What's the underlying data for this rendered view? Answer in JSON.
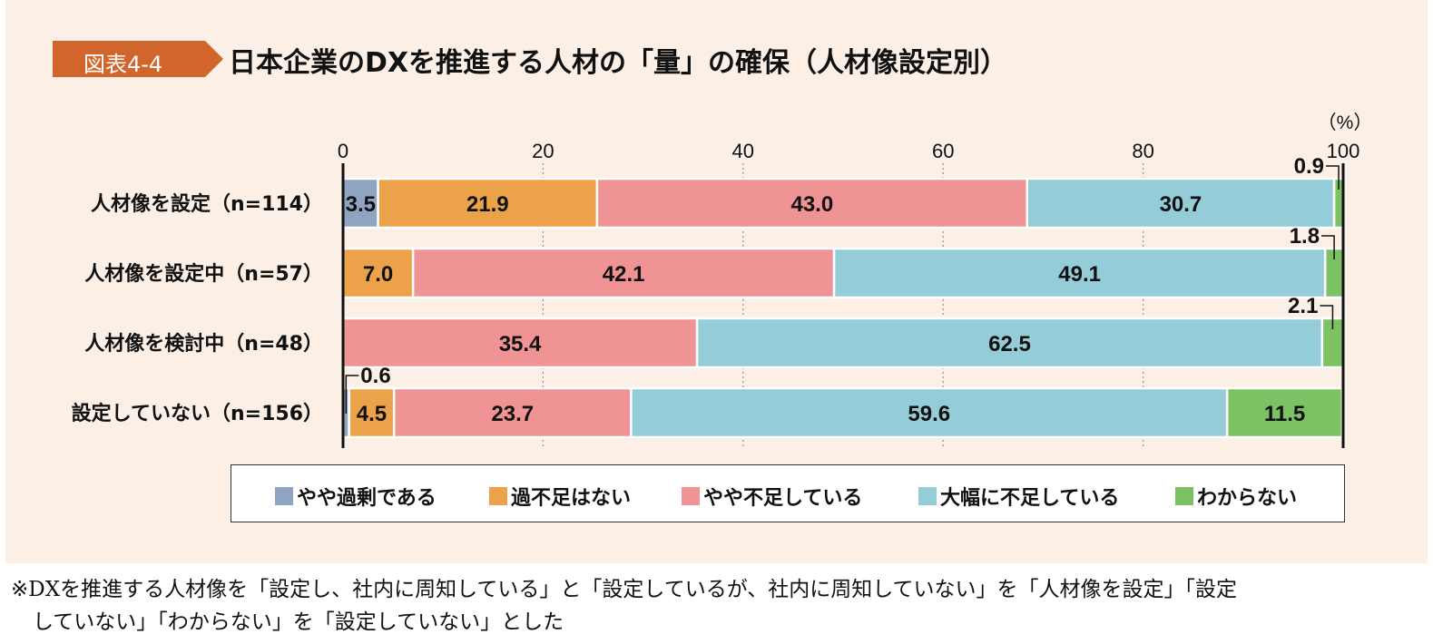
{
  "figure_tag": "図表4-4",
  "colors": {
    "panel_bg": "#fbefe6",
    "tag_bg": "#d2652b",
    "slightly_excess": "#8ea4c0",
    "no_gap": "#eca248",
    "slightly_short": "#f09394",
    "severely_short": "#94ccd8",
    "unknown": "#7cc163"
  },
  "chart_data": {
    "type": "bar",
    "orientation": "horizontal-stacked",
    "title": "日本企業のDXを推進する人材の「量」の確保（人材像設定別）",
    "unit_label": "（%）",
    "xlim": [
      0,
      100
    ],
    "x_ticks": [
      "0",
      "20",
      "40",
      "60",
      "80",
      "100"
    ],
    "categories": [
      "人材像を設定（n=114）",
      "人材像を設定中（n=57）",
      "人材像を検討中（n=48）",
      "設定していない（n=156）"
    ],
    "series": [
      {
        "name": "やや過剰である",
        "values": [
          3.5,
          0,
          0,
          0.6
        ]
      },
      {
        "name": "過不足はない",
        "values": [
          21.9,
          7.0,
          0,
          4.5
        ]
      },
      {
        "name": "やや不足している",
        "values": [
          43.0,
          42.1,
          35.4,
          23.7
        ]
      },
      {
        "name": "大幅に不足している",
        "values": [
          30.7,
          49.1,
          62.5,
          59.6
        ]
      },
      {
        "name": "わからない",
        "values": [
          0.9,
          1.8,
          2.1,
          11.5
        ]
      }
    ],
    "labels": [
      [
        "3.5",
        "21.9",
        "43.0",
        "30.7",
        "0.9"
      ],
      [
        "",
        "7.0",
        "42.1",
        "49.1",
        "1.8"
      ],
      [
        "",
        "",
        "35.4",
        "62.5",
        "2.1"
      ],
      [
        "0.6",
        "4.5",
        "23.7",
        "59.6",
        "11.5"
      ]
    ],
    "legend_position": "bottom",
    "grid": "dotted vertical"
  },
  "note": {
    "line1": "※DXを推進する人材像を「設定し、社内に周知している」と「設定しているが、社内に周知していない」を「人材像を設定」「設定",
    "line2": "していない」「わからない」を「設定していない」とした"
  }
}
